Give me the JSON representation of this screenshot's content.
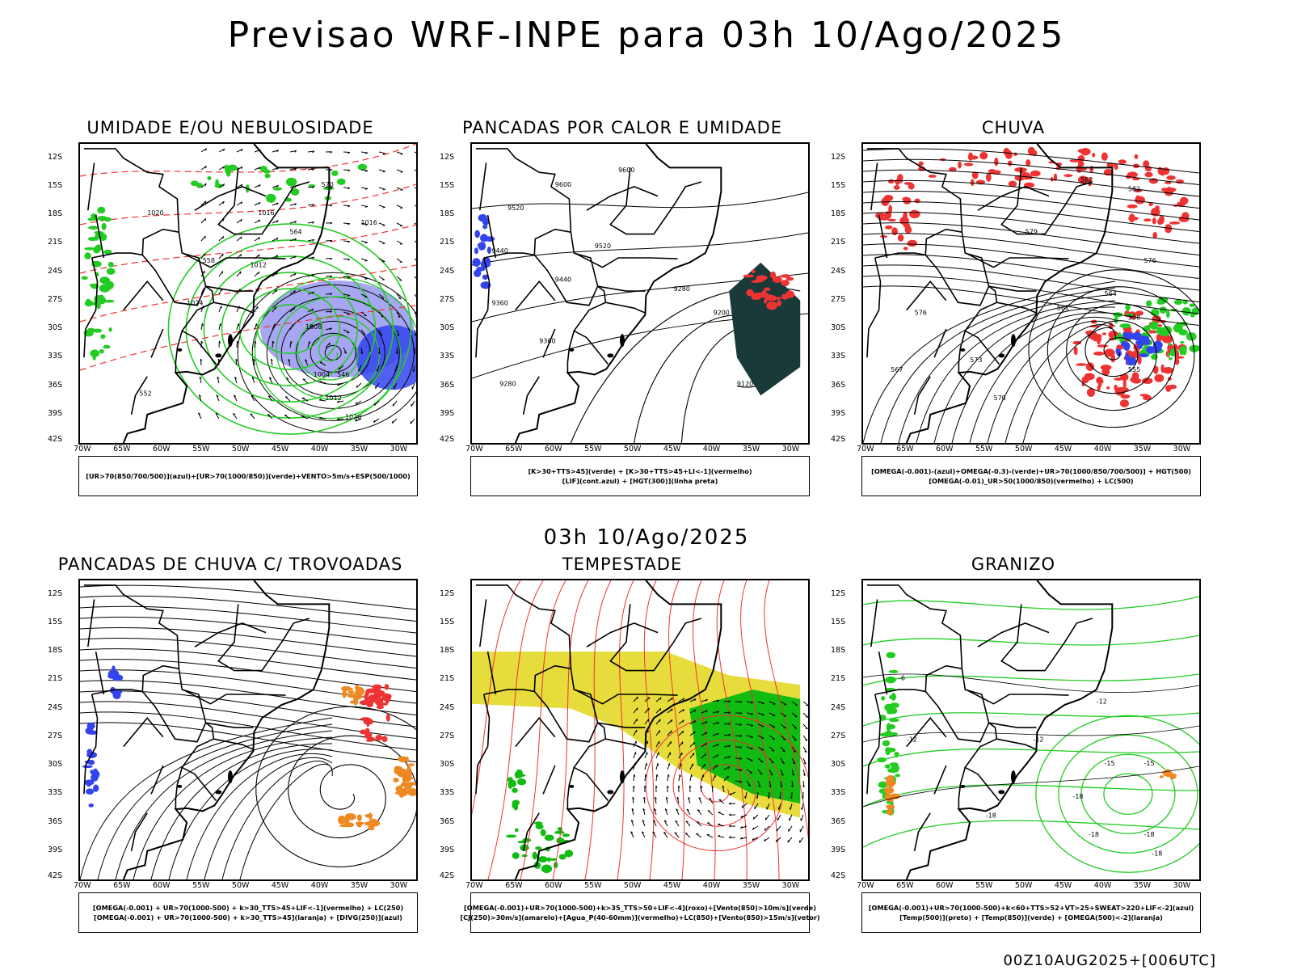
{
  "header": {
    "title": "Previsao WRF-INPE  para 03h 10/Ago/2025",
    "subtitle": "03h 10/Ago/2025",
    "footer": "00Z10AUG2025+[006UTC]"
  },
  "axes": {
    "y_ticks": [
      "12S",
      "15S",
      "18S",
      "21S",
      "24S",
      "27S",
      "30S",
      "33S",
      "36S",
      "39S",
      "42S"
    ],
    "x_ticks": [
      "70W",
      "65W",
      "60W",
      "55W",
      "50W",
      "45W",
      "40W",
      "35W",
      "30W"
    ]
  },
  "colors": {
    "green": "#22cc22",
    "blue": "#3344ee",
    "red": "#ee3333",
    "orange": "#ee8822",
    "yellow": "#e6dc3c",
    "lightblue": "#8888ee",
    "darkteal": "#1a3a3a",
    "darkgreen": "#11bb11"
  },
  "panels": [
    {
      "id": "umidade",
      "title": "UMIDADE E/OU NEBULOSIDADE",
      "legend": [
        "[UR>70(850/700/500)](azul)+[UR>70(1000/850)](verde)+VENTO>5m/s+ESP(500/1000)"
      ],
      "labels": [
        "1020",
        "1016",
        "1024",
        "1012",
        "1004",
        "1008",
        "1016",
        "1020",
        "1012",
        "552",
        "570",
        "564",
        "558",
        "546"
      ],
      "icon": "wind-vector-icon"
    },
    {
      "id": "pancadas-calor",
      "title": "PANCADAS POR CALOR E UMIDADE",
      "legend": [
        "[K>30+TTS>45](verde) + [K>30+TTS>45+LI<-1](vermelho)",
        "[LIF](cont.azul) + [HGT(300)](linha preta)"
      ],
      "labels": [
        "9600",
        "9600",
        "9520",
        "9440",
        "9520",
        "9440",
        "9360",
        "9280",
        "9200",
        "9360",
        "9280",
        "9120"
      ],
      "icon": "contour-icon"
    },
    {
      "id": "chuva",
      "title": "CHUVA",
      "legend": [
        "[OMEGA(-0.001)-(azul)+OMEGA(-0.3)-(verde)+UR>70(1000/850/700/500)] + HGT(500)",
        "[OMEGA(-0.01)_UR>50(1000/850)(vermelho) + LC(500)"
      ],
      "labels": [
        "582",
        "582",
        "579",
        "576",
        "576",
        "573",
        "567",
        "570",
        "564",
        "561",
        "558",
        "555"
      ],
      "icon": "streamline-icon"
    },
    {
      "id": "pancadas-trovoadas",
      "title": "PANCADAS DE CHUVA C/ TROVOADAS",
      "legend": [
        "[OMEGA(-0.001) + UR>70(1000-500) + k>30_TTS>45+LIF<-1](vermelho) + LC(250)",
        "[OMEGA(-0.001) + UR>70(1000-500) + k>30_TTS>45](laranja) + [DIVG(250)](azul)"
      ],
      "labels": [],
      "icon": "streamline-icon"
    },
    {
      "id": "tempestade",
      "title": "TEMPESTADE",
      "legend": [
        "[OMEGA(-0.001)+UR>70(1000-500)+k>35_TTS>50+LIF<-4](roxo)+[Vento(850)>10m/s](verde)",
        "[CJ(250)>30m/s](amarelo)+[Agua_P(40-60mm)](vermelho)+LC(850)+[Vento(850)>15m/s](vetor)"
      ],
      "labels": [],
      "icon": "wind-vector-icon"
    },
    {
      "id": "granizo",
      "title": "GRANIZO",
      "legend": [
        "[OMEGA(-0.001)+UR>70(1000-500)+k<60+TTS>52+VT>25+SWEAT>220+LIF<-2](azul)",
        "[Temp(500)](preto) + [Temp(850)](verde) + [OMEGA(500)<-2](laranja)"
      ],
      "labels": [
        "-6",
        "-12",
        "-12",
        "-12",
        "-18",
        "-15",
        "-15",
        "-18",
        "-18",
        "-18",
        "-18"
      ],
      "icon": "contour-icon"
    }
  ]
}
